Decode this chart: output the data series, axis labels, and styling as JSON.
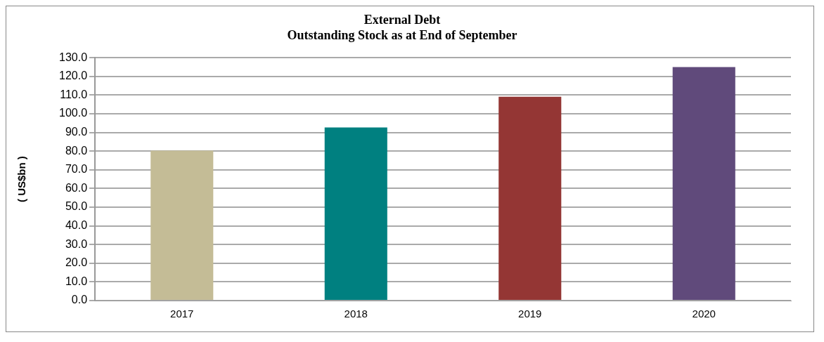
{
  "chart_data": {
    "type": "bar",
    "title": [
      "External Debt",
      "Outstanding Stock as at End of September"
    ],
    "ylabel": "( US$bn )",
    "categories": [
      "2017",
      "2018",
      "2019",
      "2020"
    ],
    "values": [
      80.3,
      92.7,
      109.1,
      125.0
    ],
    "colors": [
      "#c4bc96",
      "#008080",
      "#943634",
      "#604a7b"
    ],
    "ylim": [
      0,
      130
    ],
    "yticks": [
      {
        "value": 0,
        "label": "0.0"
      },
      {
        "value": 10,
        "label": "10.0"
      },
      {
        "value": 20,
        "label": "20.0"
      },
      {
        "value": 30,
        "label": "30.0"
      },
      {
        "value": 40,
        "label": "40.0"
      },
      {
        "value": 50,
        "label": "50.0"
      },
      {
        "value": 60,
        "label": "60.0"
      },
      {
        "value": 70,
        "label": "70.0"
      },
      {
        "value": 80,
        "label": "80.0"
      },
      {
        "value": 90,
        "label": "90.0"
      },
      {
        "value": 100,
        "label": "100.0"
      },
      {
        "value": 110,
        "label": "110.0"
      },
      {
        "value": 120,
        "label": "120.0"
      },
      {
        "value": 130,
        "label": "130.0"
      }
    ],
    "grid": "y",
    "legend": false
  }
}
